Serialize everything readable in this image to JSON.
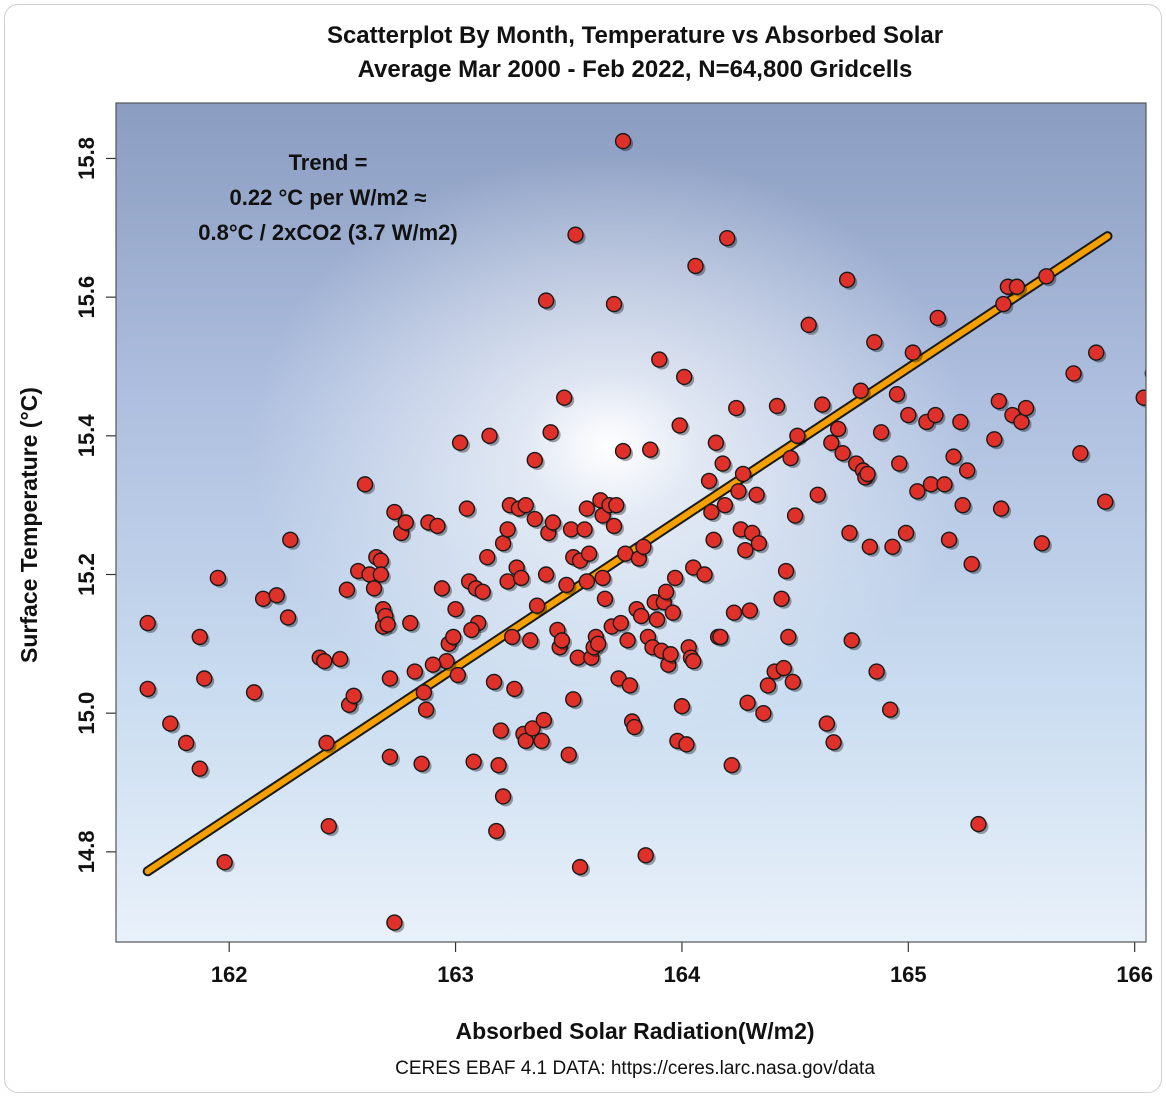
{
  "chart_data": {
    "type": "scatter",
    "title": [
      "Scatterplot By Month, Temperature vs Absorbed Solar",
      "Average Mar 2000 - Feb 2022, N=64,800 Gridcells"
    ],
    "xlabel": "Absorbed Solar Radiation(W/m2)",
    "ylabel": "Surface Temperature (°C)",
    "xlim": [
      161.5,
      166.05
    ],
    "ylim": [
      14.67,
      15.88
    ],
    "xticks": [
      162,
      163,
      164,
      165,
      166
    ],
    "xtick_labels": [
      "162",
      "163",
      "164",
      "165",
      "166"
    ],
    "yticks": [
      14.8,
      15.0,
      15.2,
      15.4,
      15.6,
      15.8
    ],
    "ytick_labels": [
      "14.8",
      "15.0",
      "15.2",
      "15.4",
      "15.6",
      "15.8"
    ],
    "annotation": [
      "Trend =",
      "0.22 °C per W/m2 ≈",
      "0.8°C / 2xCO2 (3.7 W/m2)"
    ],
    "source": "CERES EBAF 4.1 DATA: https://ceres.larc.nasa.gov/data",
    "trend_line": {
      "x": [
        161.64,
        165.88
      ],
      "y": [
        14.772,
        15.688
      ]
    },
    "colors": {
      "point": "#e0302a",
      "point_edge": "#1a1a1a",
      "trend": "#f5a000",
      "trend_edge": "#1a1a1a"
    },
    "points": [
      [
        161.64,
        15.13
      ],
      [
        161.64,
        15.035
      ],
      [
        161.74,
        14.985
      ],
      [
        161.81,
        14.957
      ],
      [
        161.87,
        14.92
      ],
      [
        161.87,
        15.11
      ],
      [
        161.89,
        15.05
      ],
      [
        161.95,
        15.195
      ],
      [
        161.98,
        14.785
      ],
      [
        162.11,
        15.03
      ],
      [
        162.15,
        15.165
      ],
      [
        162.21,
        15.17
      ],
      [
        162.26,
        15.138
      ],
      [
        162.27,
        15.25
      ],
      [
        162.4,
        15.08
      ],
      [
        162.42,
        15.075
      ],
      [
        162.43,
        14.957
      ],
      [
        162.44,
        14.837
      ],
      [
        162.49,
        15.078
      ],
      [
        162.52,
        15.178
      ],
      [
        162.53,
        15.012
      ],
      [
        162.55,
        15.025
      ],
      [
        162.57,
        15.205
      ],
      [
        162.6,
        15.33
      ],
      [
        162.62,
        15.2
      ],
      [
        162.64,
        15.18
      ],
      [
        162.65,
        15.225
      ],
      [
        162.67,
        15.22
      ],
      [
        162.67,
        15.2
      ],
      [
        162.68,
        15.15
      ],
      [
        162.68,
        15.125
      ],
      [
        162.69,
        15.14
      ],
      [
        162.7,
        15.128
      ],
      [
        162.71,
        15.05
      ],
      [
        162.71,
        14.937
      ],
      [
        162.73,
        15.29
      ],
      [
        162.76,
        15.26
      ],
      [
        162.78,
        15.275
      ],
      [
        162.8,
        15.13
      ],
      [
        162.82,
        15.06
      ],
      [
        162.85,
        14.927
      ],
      [
        162.86,
        15.03
      ],
      [
        162.87,
        15.005
      ],
      [
        162.88,
        15.275
      ],
      [
        162.92,
        15.27
      ],
      [
        162.94,
        15.18
      ],
      [
        162.96,
        15.075
      ],
      [
        162.97,
        15.1
      ],
      [
        162.99,
        15.11
      ],
      [
        163.0,
        15.15
      ],
      [
        163.01,
        15.055
      ],
      [
        163.02,
        15.39
      ],
      [
        163.05,
        15.295
      ],
      [
        163.06,
        15.19
      ],
      [
        163.08,
        14.93
      ],
      [
        163.09,
        15.18
      ],
      [
        163.1,
        15.13
      ],
      [
        163.12,
        15.175
      ],
      [
        163.14,
        15.225
      ],
      [
        163.15,
        15.4
      ],
      [
        163.17,
        15.045
      ],
      [
        163.18,
        14.83
      ],
      [
        163.19,
        14.925
      ],
      [
        163.2,
        14.975
      ],
      [
        163.21,
        15.245
      ],
      [
        163.21,
        14.88
      ],
      [
        163.23,
        15.265
      ],
      [
        163.23,
        15.19
      ],
      [
        163.24,
        15.3
      ],
      [
        163.25,
        15.11
      ],
      [
        163.26,
        15.035
      ],
      [
        163.27,
        15.21
      ],
      [
        163.28,
        15.295
      ],
      [
        163.29,
        15.195
      ],
      [
        163.3,
        14.97
      ],
      [
        163.31,
        15.3
      ],
      [
        163.31,
        14.96
      ],
      [
        163.33,
        15.105
      ],
      [
        163.34,
        14.978
      ],
      [
        163.35,
        15.365
      ],
      [
        163.36,
        15.155
      ],
      [
        163.38,
        14.96
      ],
      [
        163.39,
        14.99
      ],
      [
        163.4,
        15.2
      ],
      [
        163.4,
        15.595
      ],
      [
        163.41,
        15.26
      ],
      [
        163.42,
        15.405
      ],
      [
        163.43,
        15.275
      ],
      [
        163.45,
        15.12
      ],
      [
        163.46,
        15.095
      ],
      [
        163.47,
        15.105
      ],
      [
        163.48,
        15.455
      ],
      [
        163.49,
        15.185
      ],
      [
        163.5,
        14.94
      ],
      [
        163.51,
        15.265
      ],
      [
        163.52,
        15.02
      ],
      [
        163.52,
        15.225
      ],
      [
        163.53,
        15.69
      ],
      [
        163.54,
        15.08
      ],
      [
        163.55,
        15.22
      ],
      [
        163.55,
        14.778
      ],
      [
        163.57,
        15.265
      ],
      [
        163.58,
        15.295
      ],
      [
        163.58,
        15.19
      ],
      [
        163.59,
        15.23
      ],
      [
        163.6,
        15.08
      ],
      [
        163.61,
        15.095
      ],
      [
        163.62,
        15.11
      ],
      [
        163.63,
        15.1
      ],
      [
        163.64,
        15.307
      ],
      [
        163.65,
        15.285
      ],
      [
        163.65,
        15.195
      ],
      [
        163.66,
        15.165
      ],
      [
        163.68,
        15.3
      ],
      [
        163.69,
        15.125
      ],
      [
        163.7,
        15.27
      ],
      [
        163.7,
        15.59
      ],
      [
        163.71,
        15.3
      ],
      [
        163.72,
        15.05
      ],
      [
        163.73,
        15.13
      ],
      [
        163.74,
        15.825
      ],
      [
        163.74,
        15.378
      ],
      [
        163.75,
        15.23
      ],
      [
        163.76,
        15.105
      ],
      [
        163.77,
        15.04
      ],
      [
        163.78,
        14.988
      ],
      [
        163.79,
        14.98
      ],
      [
        163.8,
        15.15
      ],
      [
        163.81,
        15.223
      ],
      [
        163.82,
        15.14
      ],
      [
        163.83,
        15.24
      ],
      [
        163.84,
        14.795
      ],
      [
        163.85,
        15.11
      ],
      [
        163.86,
        15.38
      ],
      [
        163.87,
        15.095
      ],
      [
        163.88,
        15.16
      ],
      [
        163.89,
        15.135
      ],
      [
        163.9,
        15.51
      ],
      [
        163.91,
        15.09
      ],
      [
        163.92,
        15.16
      ],
      [
        163.93,
        15.175
      ],
      [
        163.94,
        15.07
      ],
      [
        163.95,
        15.085
      ],
      [
        163.96,
        15.145
      ],
      [
        163.97,
        15.195
      ],
      [
        163.98,
        14.96
      ],
      [
        163.99,
        15.415
      ],
      [
        164.0,
        15.01
      ],
      [
        164.01,
        15.485
      ],
      [
        164.02,
        14.955
      ],
      [
        164.03,
        15.095
      ],
      [
        164.04,
        15.08
      ],
      [
        164.05,
        15.21
      ],
      [
        164.06,
        15.645
      ],
      [
        164.1,
        15.2
      ],
      [
        164.12,
        15.335
      ],
      [
        164.13,
        15.29
      ],
      [
        164.14,
        15.25
      ],
      [
        164.15,
        15.39
      ],
      [
        164.16,
        15.11
      ],
      [
        164.17,
        15.11
      ],
      [
        164.18,
        15.36
      ],
      [
        164.19,
        15.3
      ],
      [
        164.2,
        15.685
      ],
      [
        164.22,
        14.925
      ],
      [
        164.23,
        15.145
      ],
      [
        164.24,
        15.44
      ],
      [
        164.25,
        15.32
      ],
      [
        164.26,
        15.265
      ],
      [
        164.27,
        15.345
      ],
      [
        164.28,
        15.235
      ],
      [
        164.29,
        15.015
      ],
      [
        164.3,
        15.148
      ],
      [
        164.31,
        15.26
      ],
      [
        164.33,
        15.315
      ],
      [
        164.34,
        15.245
      ],
      [
        164.36,
        15.0
      ],
      [
        164.38,
        15.04
      ],
      [
        164.41,
        15.06
      ],
      [
        164.42,
        15.443
      ],
      [
        164.44,
        15.165
      ],
      [
        164.45,
        15.065
      ],
      [
        164.46,
        15.205
      ],
      [
        164.47,
        15.11
      ],
      [
        164.48,
        15.368
      ],
      [
        164.49,
        15.045
      ],
      [
        164.5,
        15.285
      ],
      [
        164.51,
        15.4
      ],
      [
        164.56,
        15.56
      ],
      [
        164.6,
        15.315
      ],
      [
        164.62,
        15.445
      ],
      [
        164.64,
        14.985
      ],
      [
        164.66,
        15.39
      ],
      [
        164.67,
        14.958
      ],
      [
        164.69,
        15.41
      ],
      [
        164.71,
        15.375
      ],
      [
        164.73,
        15.625
      ],
      [
        164.74,
        15.26
      ],
      [
        164.75,
        15.105
      ],
      [
        164.77,
        15.36
      ],
      [
        164.79,
        15.465
      ],
      [
        164.8,
        15.35
      ],
      [
        164.81,
        15.34
      ],
      [
        164.82,
        15.345
      ],
      [
        164.83,
        15.24
      ],
      [
        164.85,
        15.535
      ],
      [
        164.86,
        15.06
      ],
      [
        164.88,
        15.405
      ],
      [
        164.92,
        15.005
      ],
      [
        164.93,
        15.24
      ],
      [
        164.95,
        15.46
      ],
      [
        164.96,
        15.36
      ],
      [
        164.99,
        15.26
      ],
      [
        165.0,
        15.43
      ],
      [
        165.02,
        15.52
      ],
      [
        165.04,
        15.32
      ],
      [
        165.08,
        15.42
      ],
      [
        165.1,
        15.33
      ],
      [
        165.12,
        15.43
      ],
      [
        165.13,
        15.57
      ],
      [
        165.16,
        15.33
      ],
      [
        165.18,
        15.25
      ],
      [
        165.2,
        15.37
      ],
      [
        165.23,
        15.42
      ],
      [
        165.24,
        15.3
      ],
      [
        165.26,
        15.35
      ],
      [
        165.28,
        15.215
      ],
      [
        165.31,
        14.84
      ],
      [
        165.38,
        15.395
      ],
      [
        165.4,
        15.45
      ],
      [
        165.41,
        15.295
      ],
      [
        165.42,
        15.59
      ],
      [
        165.44,
        15.615
      ],
      [
        165.46,
        15.43
      ],
      [
        165.48,
        15.615
      ],
      [
        165.5,
        15.42
      ],
      [
        165.52,
        15.44
      ],
      [
        165.59,
        15.245
      ],
      [
        165.61,
        15.63
      ],
      [
        165.73,
        15.49
      ],
      [
        165.76,
        15.375
      ],
      [
        165.83,
        15.52
      ],
      [
        165.87,
        15.305
      ],
      [
        166.04,
        15.455
      ],
      [
        166.08,
        15.49
      ],
      [
        162.73,
        14.698
      ],
      [
        163.07,
        15.12
      ],
      [
        162.9,
        15.07
      ],
      [
        163.35,
        15.28
      ],
      [
        164.05,
        15.075
      ]
    ]
  }
}
